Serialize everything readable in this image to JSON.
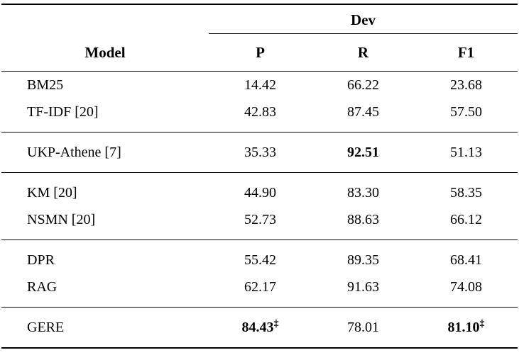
{
  "table": {
    "span_header": "Dev",
    "columns": {
      "model": "Model",
      "p": "P",
      "r": "R",
      "f1": "F1"
    },
    "groups": [
      {
        "rows": [
          {
            "model": "BM25",
            "p": "14.42",
            "r": "66.22",
            "f1": "23.68"
          },
          {
            "model": "TF-IDF [20]",
            "p": "42.83",
            "r": "87.45",
            "f1": "57.50"
          }
        ]
      },
      {
        "rows": [
          {
            "model": "UKP-Athene [7]",
            "p": "35.33",
            "r": "92.51",
            "f1": "51.13"
          }
        ]
      },
      {
        "rows": [
          {
            "model": "KM [20]",
            "p": "44.90",
            "r": "83.30",
            "f1": "58.35"
          },
          {
            "model": "NSMN [20]",
            "p": "52.73",
            "r": "88.63",
            "f1": "66.12"
          }
        ]
      },
      {
        "rows": [
          {
            "model": "DPR",
            "p": "55.42",
            "r": "89.35",
            "f1": "68.41"
          },
          {
            "model": "RAG",
            "p": "62.17",
            "r": "91.63",
            "f1": "74.08"
          }
        ]
      },
      {
        "rows": [
          {
            "model": "GERE",
            "p": "84.43",
            "p_marker": "‡",
            "r": "78.01",
            "f1": "81.10",
            "f1_marker": "‡"
          }
        ]
      }
    ]
  }
}
